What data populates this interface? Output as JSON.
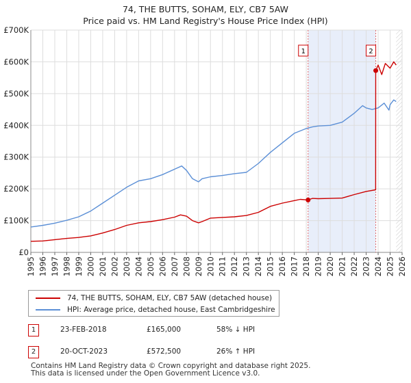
{
  "chart_data": {
    "type": "line",
    "title": "74, THE BUTTS, SOHAM, ELY, CB7 5AW",
    "subtitle": "Price paid vs. HM Land Registry's House Price Index (HPI)",
    "xlim": [
      1995,
      2026
    ],
    "ylim": [
      0,
      700000
    ],
    "ytick_values": [
      0,
      100000,
      200000,
      300000,
      400000,
      500000,
      600000,
      700000
    ],
    "ytick_labels": [
      "£0",
      "£100K",
      "£200K",
      "£300K",
      "£400K",
      "£500K",
      "£600K",
      "£700K"
    ],
    "xtick_labels": [
      "1995",
      "1996",
      "1997",
      "1998",
      "1999",
      "2000",
      "2001",
      "2002",
      "2003",
      "2004",
      "2005",
      "2006",
      "2007",
      "2008",
      "2009",
      "2010",
      "2011",
      "2012",
      "2013",
      "2014",
      "2015",
      "2016",
      "2017",
      "2018",
      "2019",
      "2020",
      "2021",
      "2022",
      "2023",
      "2024",
      "2025",
      "2026"
    ],
    "grid": true,
    "shaded_region": [
      2018.15,
      2023.8
    ],
    "future_hatch_start": 2025.5,
    "series": [
      {
        "name": "74, THE BUTTS, SOHAM, ELY, CB7 5AW (detached house)",
        "color": "#cc0000",
        "x": [
          1995,
          1996,
          1997,
          1998,
          1999,
          2000,
          2001,
          2002,
          2003,
          2004,
          2005,
          2006,
          2007,
          2007.5,
          2008,
          2008.5,
          2009,
          2009.3,
          2010,
          2011,
          2012,
          2013,
          2014,
          2015,
          2016,
          2017,
          2017.5,
          2018.15,
          2018.5,
          2019,
          2020,
          2021,
          2022,
          2023,
          2023.79,
          2023.8,
          2024,
          2024.3,
          2024.6,
          2025,
          2025.3,
          2025.5
        ],
        "values": [
          35000,
          36000,
          40000,
          44000,
          47000,
          52000,
          61000,
          72000,
          85000,
          93000,
          97000,
          103000,
          111000,
          118000,
          114000,
          100000,
          93000,
          97000,
          108000,
          110000,
          112000,
          116000,
          126000,
          145000,
          155000,
          163000,
          167000,
          165000,
          170000,
          169000,
          170000,
          171000,
          182000,
          192000,
          197000,
          572500,
          590000,
          560000,
          595000,
          580000,
          600000,
          590000
        ]
      },
      {
        "name": "HPI: Average price, detached house, East Cambridgeshire",
        "color": "#5b8fd6",
        "x": [
          1995,
          1996,
          1997,
          1998,
          1999,
          2000,
          2001,
          2002,
          2003,
          2004,
          2005,
          2006,
          2007,
          2007.6,
          2008,
          2008.5,
          2009,
          2009.3,
          2010,
          2011,
          2012,
          2013,
          2014,
          2015,
          2016,
          2017,
          2018,
          2018.5,
          2019,
          2020,
          2021,
          2022,
          2022.7,
          2023,
          2023.5,
          2024,
          2024.5,
          2024.9,
          2025,
          2025.3,
          2025.5
        ],
        "values": [
          80000,
          85000,
          92000,
          101000,
          112000,
          130000,
          155000,
          180000,
          205000,
          225000,
          232000,
          245000,
          262000,
          272000,
          258000,
          232000,
          222000,
          232000,
          238000,
          242000,
          248000,
          252000,
          280000,
          315000,
          345000,
          375000,
          390000,
          395000,
          398000,
          400000,
          410000,
          438000,
          462000,
          455000,
          450000,
          455000,
          470000,
          448000,
          465000,
          480000,
          475000
        ]
      }
    ],
    "annotations": [
      {
        "label": "1",
        "x": 2018.15,
        "price": 165000
      },
      {
        "label": "2",
        "x": 2023.8,
        "price": 572500
      }
    ]
  },
  "legend": {
    "property_label": "74, THE BUTTS, SOHAM, ELY, CB7 5AW (detached house)",
    "hpi_label": "HPI: Average price, detached house, East Cambridgeshire"
  },
  "sales": [
    {
      "num": "1",
      "date": "23-FEB-2018",
      "price": "£165,000",
      "hpi": "58% ↓ HPI"
    },
    {
      "num": "2",
      "date": "20-OCT-2023",
      "price": "£572,500",
      "hpi": "26% ↑ HPI"
    }
  ],
  "footer": {
    "line1": "Contains HM Land Registry data © Crown copyright and database right 2025.",
    "line2": "This data is licensed under the Open Government Licence v3.0."
  },
  "colors": {
    "property": "#cc0000",
    "hpi": "#5b8fd6",
    "shade": "#e8eefa",
    "grid": "#dddddd"
  }
}
